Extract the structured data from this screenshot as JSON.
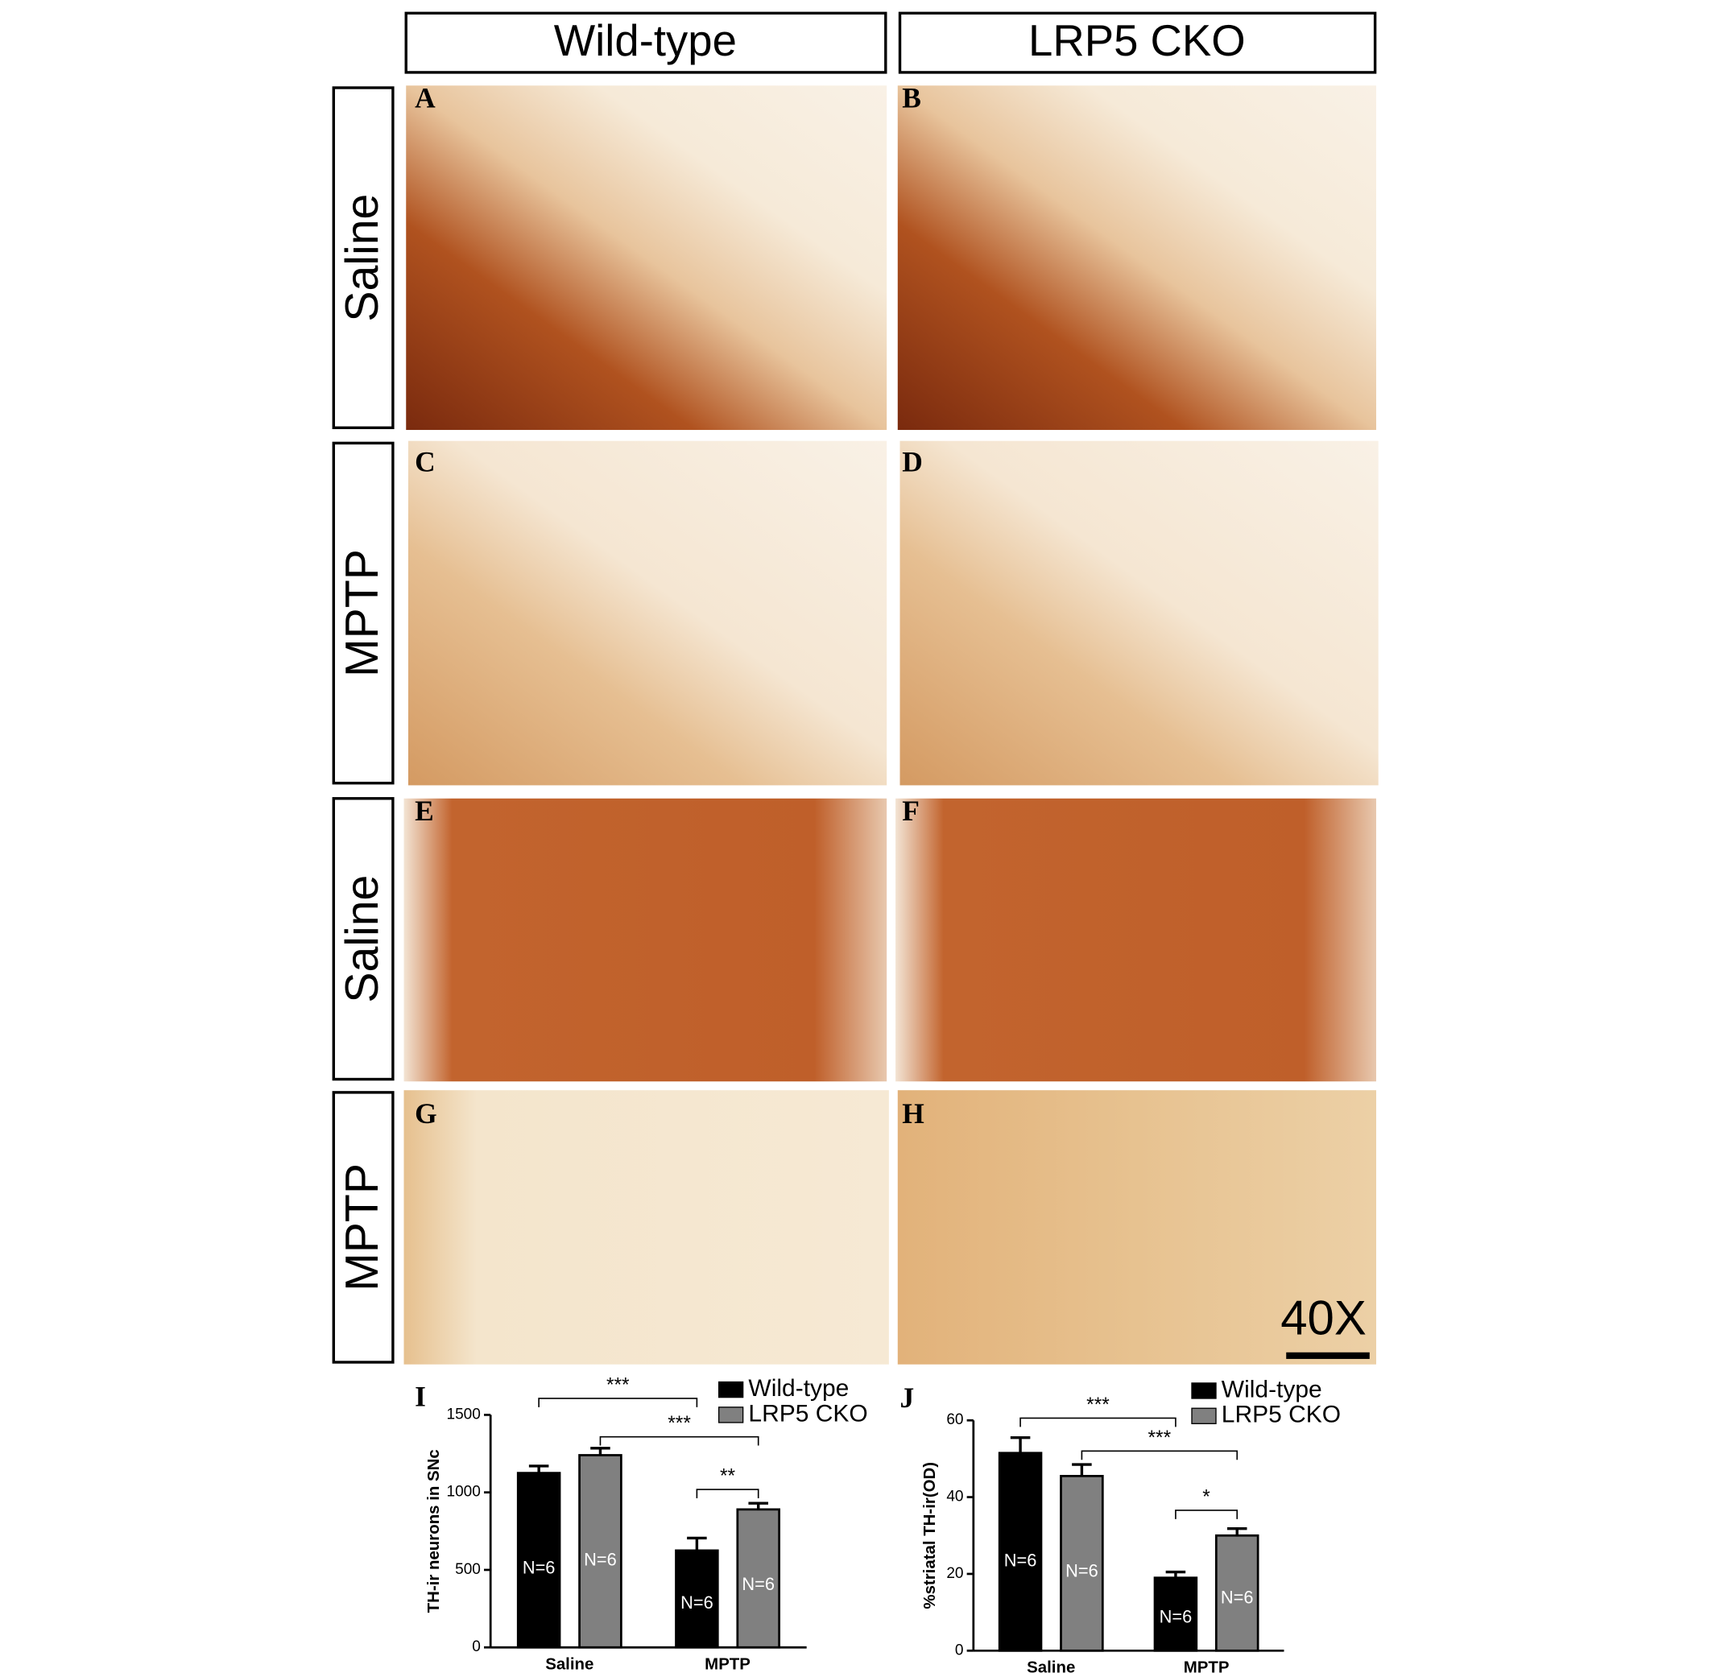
{
  "column_headers": [
    "Wild-type",
    "LRP5 CKO"
  ],
  "row_labels": [
    "Saline",
    "MPTP",
    "Saline",
    "MPTP"
  ],
  "panel_letters": [
    "A",
    "B",
    "C",
    "D",
    "E",
    "F",
    "G",
    "H"
  ],
  "scale_label": "40X",
  "chart_data": [
    {
      "type": "bar",
      "panel": "I",
      "ylabel": "TH-ir neurons in SNc",
      "categories": [
        "Saline",
        "MPTP"
      ],
      "series": [
        {
          "name": "Wild-type",
          "color": "#000000",
          "values": [
            1125,
            625
          ],
          "errors": [
            45,
            80
          ],
          "bar_labels": [
            "N=6",
            "N=6"
          ]
        },
        {
          "name": "LRP5 CKO",
          "color": "#808080",
          "values": [
            1240,
            890
          ],
          "errors": [
            45,
            40
          ],
          "bar_labels": [
            "N=6",
            "N=6"
          ]
        }
      ],
      "significance": [
        "***",
        "***",
        "**"
      ],
      "ylim": [
        0,
        1500
      ],
      "yticks": [
        0,
        500,
        1000,
        1500
      ]
    },
    {
      "type": "bar",
      "panel": "J",
      "ylabel": "%striatal TH-ir(OD)",
      "categories": [
        "Saline",
        "MPTP"
      ],
      "series": [
        {
          "name": "Wild-type",
          "color": "#000000",
          "values": [
            51.5,
            19
          ],
          "errors": [
            4,
            1.5
          ],
          "bar_labels": [
            "N=6",
            "N=6"
          ]
        },
        {
          "name": "LRP5 CKO",
          "color": "#808080",
          "values": [
            45.5,
            30
          ],
          "errors": [
            3,
            1.8
          ],
          "bar_labels": [
            "N=6",
            "N=6"
          ]
        }
      ],
      "significance": [
        "***",
        "***",
        "*"
      ],
      "ylim": [
        0,
        60
      ],
      "yticks": [
        0,
        20,
        40,
        60
      ]
    }
  ]
}
